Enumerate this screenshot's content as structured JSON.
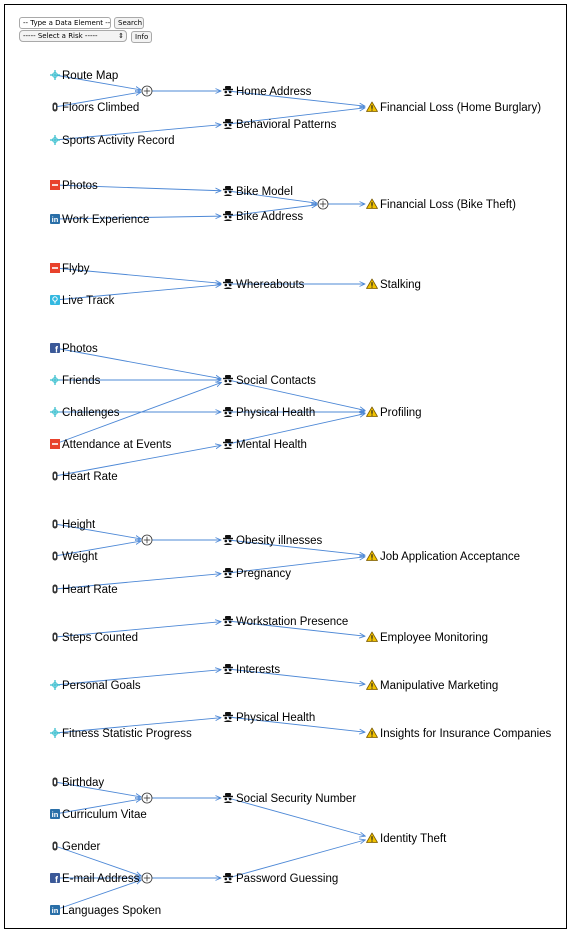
{
  "controls": {
    "type_placeholder": "-- Type a Data Element --",
    "search_label": "Search",
    "risk_select_value": "----- Select a Risk -----",
    "info_label": "Info"
  },
  "colors": {
    "edge": "#4d88d6",
    "source_strava": "#3bbfcf",
    "source_fitbit": "#333333",
    "source_flickr": "#e8422c",
    "source_linkedin": "#2a6fa8",
    "source_facebook": "#3b5998",
    "source_garmin": "#33b8e0",
    "risk_warning": "#f2c200"
  },
  "diagram": {
    "groups": [
      {
        "sources": [
          {
            "id": "s-route-map",
            "label": "Route Map",
            "icon": "strava-crosshair-icon"
          },
          {
            "id": "s-floors-climbed",
            "label": "Floors Climbed",
            "icon": "fitbit-icon"
          },
          {
            "id": "s-sports-activity-record",
            "label": "Sports Activity Record",
            "icon": "strava-crosshair-icon"
          }
        ],
        "combiners": [
          {
            "id": "c1"
          }
        ],
        "attributes": [
          {
            "id": "a-home-address",
            "label": "Home Address"
          },
          {
            "id": "a-behavioral-patterns",
            "label": "Behavioral Patterns"
          }
        ],
        "risks": [
          {
            "id": "r-financial-loss-home",
            "label": "Financial Loss (Home Burglary)"
          }
        ],
        "edges": [
          [
            "s-route-map",
            "c1"
          ],
          [
            "s-floors-climbed",
            "c1"
          ],
          [
            "c1",
            "a-home-address"
          ],
          [
            "s-sports-activity-record",
            "a-behavioral-patterns"
          ],
          [
            "a-home-address",
            "r-financial-loss-home"
          ],
          [
            "a-behavioral-patterns",
            "r-financial-loss-home"
          ]
        ]
      },
      {
        "sources": [
          {
            "id": "s-photos-flickr",
            "label": "Photos",
            "icon": "flickr-icon"
          },
          {
            "id": "s-work-experience",
            "label": "Work Experience",
            "icon": "linkedin-icon"
          }
        ],
        "combiners": [
          {
            "id": "c2"
          }
        ],
        "attributes": [
          {
            "id": "a-bike-model",
            "label": "Bike Model"
          },
          {
            "id": "a-bike-address",
            "label": "Bike Address"
          }
        ],
        "risks": [
          {
            "id": "r-financial-loss-bike",
            "label": "Financial Loss (Bike Theft)"
          }
        ],
        "edges": [
          [
            "s-photos-flickr",
            "a-bike-model"
          ],
          [
            "s-work-experience",
            "a-bike-address"
          ],
          [
            "a-bike-model",
            "c2"
          ],
          [
            "a-bike-address",
            "c2"
          ],
          [
            "c2",
            "r-financial-loss-bike"
          ]
        ]
      },
      {
        "sources": [
          {
            "id": "s-flyby",
            "label": "Flyby",
            "icon": "flickr-icon"
          },
          {
            "id": "s-live-track",
            "label": "Live Track",
            "icon": "garmin-icon"
          }
        ],
        "combiners": [],
        "attributes": [
          {
            "id": "a-whereabouts",
            "label": "Whereabouts"
          }
        ],
        "risks": [
          {
            "id": "r-stalking",
            "label": "Stalking"
          }
        ],
        "edges": [
          [
            "s-flyby",
            "a-whereabouts"
          ],
          [
            "s-live-track",
            "a-whereabouts"
          ],
          [
            "a-whereabouts",
            "r-stalking"
          ]
        ]
      },
      {
        "sources": [
          {
            "id": "s-photos-fb",
            "label": "Photos",
            "icon": "facebook-icon"
          },
          {
            "id": "s-friends",
            "label": "Friends",
            "icon": "strava-crosshair-icon"
          },
          {
            "id": "s-challenges",
            "label": "Challenges",
            "icon": "strava-crosshair-icon"
          },
          {
            "id": "s-attendance",
            "label": "Attendance at Events",
            "icon": "flickr-icon"
          },
          {
            "id": "s-heart-rate-1",
            "label": "Heart Rate",
            "icon": "fitbit-icon"
          }
        ],
        "combiners": [],
        "attributes": [
          {
            "id": "a-social-contacts",
            "label": "Social Contacts"
          },
          {
            "id": "a-physical-health-1",
            "label": "Physical Health"
          },
          {
            "id": "a-mental-health",
            "label": "Mental Health"
          }
        ],
        "risks": [
          {
            "id": "r-profiling",
            "label": "Profiling"
          }
        ],
        "edges": [
          [
            "s-photos-fb",
            "a-social-contacts"
          ],
          [
            "s-friends",
            "a-social-contacts"
          ],
          [
            "s-challenges",
            "a-physical-health-1"
          ],
          [
            "s-attendance",
            "a-social-contacts"
          ],
          [
            "s-heart-rate-1",
            "a-mental-health"
          ],
          [
            "a-social-contacts",
            "r-profiling"
          ],
          [
            "a-physical-health-1",
            "r-profiling"
          ],
          [
            "a-mental-health",
            "r-profiling"
          ]
        ]
      },
      {
        "sources": [
          {
            "id": "s-height",
            "label": "Height",
            "icon": "fitbit-icon"
          },
          {
            "id": "s-weight",
            "label": "Weight",
            "icon": "fitbit-icon"
          },
          {
            "id": "s-heart-rate-2",
            "label": "Heart Rate",
            "icon": "fitbit-icon"
          }
        ],
        "combiners": [
          {
            "id": "c3"
          }
        ],
        "attributes": [
          {
            "id": "a-obesity",
            "label": "Obesity illnesses"
          },
          {
            "id": "a-pregnancy",
            "label": "Pregnancy"
          }
        ],
        "risks": [
          {
            "id": "r-job-application",
            "label": "Job Application Acceptance"
          }
        ],
        "edges": [
          [
            "s-height",
            "c3"
          ],
          [
            "s-weight",
            "c3"
          ],
          [
            "c3",
            "a-obesity"
          ],
          [
            "s-heart-rate-2",
            "a-pregnancy"
          ],
          [
            "a-obesity",
            "r-job-application"
          ],
          [
            "a-pregnancy",
            "r-job-application"
          ]
        ]
      },
      {
        "sources": [
          {
            "id": "s-steps-counted",
            "label": "Steps Counted",
            "icon": "fitbit-icon"
          }
        ],
        "combiners": [],
        "attributes": [
          {
            "id": "a-workstation-presence",
            "label": "Workstation Presence"
          }
        ],
        "risks": [
          {
            "id": "r-employee-monitoring",
            "label": "Employee Monitoring"
          }
        ],
        "edges": [
          [
            "s-steps-counted",
            "a-workstation-presence"
          ],
          [
            "a-workstation-presence",
            "r-employee-monitoring"
          ]
        ]
      },
      {
        "sources": [
          {
            "id": "s-personal-goals",
            "label": "Personal Goals",
            "icon": "strava-crosshair-icon"
          }
        ],
        "combiners": [],
        "attributes": [
          {
            "id": "a-interests",
            "label": "Interests"
          }
        ],
        "risks": [
          {
            "id": "r-manipulative-marketing",
            "label": "Manipulative Marketing"
          }
        ],
        "edges": [
          [
            "s-personal-goals",
            "a-interests"
          ],
          [
            "a-interests",
            "r-manipulative-marketing"
          ]
        ]
      },
      {
        "sources": [
          {
            "id": "s-fitness-statistic",
            "label": "Fitness Statistic Progress",
            "icon": "strava-crosshair-icon"
          }
        ],
        "combiners": [],
        "attributes": [
          {
            "id": "a-physical-health-2",
            "label": "Physical Health"
          }
        ],
        "risks": [
          {
            "id": "r-insurance",
            "label": "Insights for Insurance Companies"
          }
        ],
        "edges": [
          [
            "s-fitness-statistic",
            "a-physical-health-2"
          ],
          [
            "a-physical-health-2",
            "r-insurance"
          ]
        ]
      },
      {
        "sources": [
          {
            "id": "s-birthday",
            "label": "Birthday",
            "icon": "fitbit-icon"
          },
          {
            "id": "s-cv",
            "label": "Curriculum Vitae",
            "icon": "linkedin-icon"
          },
          {
            "id": "s-gender",
            "label": "Gender",
            "icon": "fitbit-icon"
          },
          {
            "id": "s-email",
            "label": "E-mail Address",
            "icon": "facebook-icon"
          },
          {
            "id": "s-languages",
            "label": "Languages Spoken",
            "icon": "linkedin-icon"
          }
        ],
        "combiners": [
          {
            "id": "c4"
          },
          {
            "id": "c5"
          }
        ],
        "attributes": [
          {
            "id": "a-ssn",
            "label": "Social Security Number"
          },
          {
            "id": "a-password-guessing",
            "label": "Password Guessing"
          }
        ],
        "risks": [
          {
            "id": "r-identity-theft",
            "label": "Identity Theft"
          }
        ],
        "edges": [
          [
            "s-birthday",
            "c4"
          ],
          [
            "s-cv",
            "c4"
          ],
          [
            "c4",
            "a-ssn"
          ],
          [
            "s-gender",
            "c5"
          ],
          [
            "s-email",
            "c5"
          ],
          [
            "s-languages",
            "c5"
          ],
          [
            "c5",
            "a-password-guessing"
          ],
          [
            "a-ssn",
            "r-identity-theft"
          ],
          [
            "a-password-guessing",
            "r-identity-theft"
          ]
        ]
      }
    ]
  }
}
